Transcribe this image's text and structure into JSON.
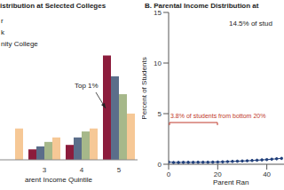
{
  "chart_data": [
    {
      "type": "bar",
      "title": "istribution at Selected Colleges",
      "x_label": "arent Income Quintile",
      "categories": [
        null,
        "3",
        "4",
        "5"
      ],
      "series": [
        {
          "name": "r",
          "color": "#8c1c3c",
          "values": [
            null,
            7,
            10,
            70
          ]
        },
        {
          "name": "k",
          "color": "#5b6e8a",
          "values": [
            null,
            9,
            15,
            56
          ]
        },
        {
          "color": "#a6b88a",
          "values": [
            null,
            12,
            19,
            44
          ]
        },
        {
          "name": "nity College",
          "color": "#f6c896",
          "values": [
            21,
            15,
            21,
            31
          ]
        }
      ],
      "ylim": [
        0,
        75
      ],
      "tick_labels": "x",
      "legend": "upper left",
      "annotations": [
        "Top 1%"
      ]
    },
    {
      "type": "line",
      "title": "B. Parental Income Distribution at",
      "x_label": "Parent Ran",
      "y_label": "Percent of Students",
      "x": [
        0,
        2,
        4,
        6,
        8,
        10,
        12,
        14,
        16,
        18,
        20,
        22,
        24,
        26,
        28,
        30,
        32,
        34,
        36,
        38,
        40,
        42,
        44,
        46
      ],
      "series": [
        {
          "color": "#1f3e7a",
          "marker": "circle",
          "values": [
            0.22,
            0.18,
            0.18,
            0.19,
            0.19,
            0.19,
            0.2,
            0.2,
            0.2,
            0.21,
            0.22,
            0.24,
            0.26,
            0.28,
            0.3,
            0.32,
            0.34,
            0.37,
            0.4,
            0.43,
            0.46,
            0.5,
            0.54,
            0.58
          ]
        }
      ],
      "xlim": [
        0,
        47
      ],
      "xticks": [
        0,
        20,
        40
      ],
      "ylim": [
        0,
        15
      ],
      "yticks": [
        0,
        5,
        10,
        15
      ],
      "annotations": [
        "14.5% of stud",
        "3.8% of students from bottom 20%"
      ]
    }
  ]
}
